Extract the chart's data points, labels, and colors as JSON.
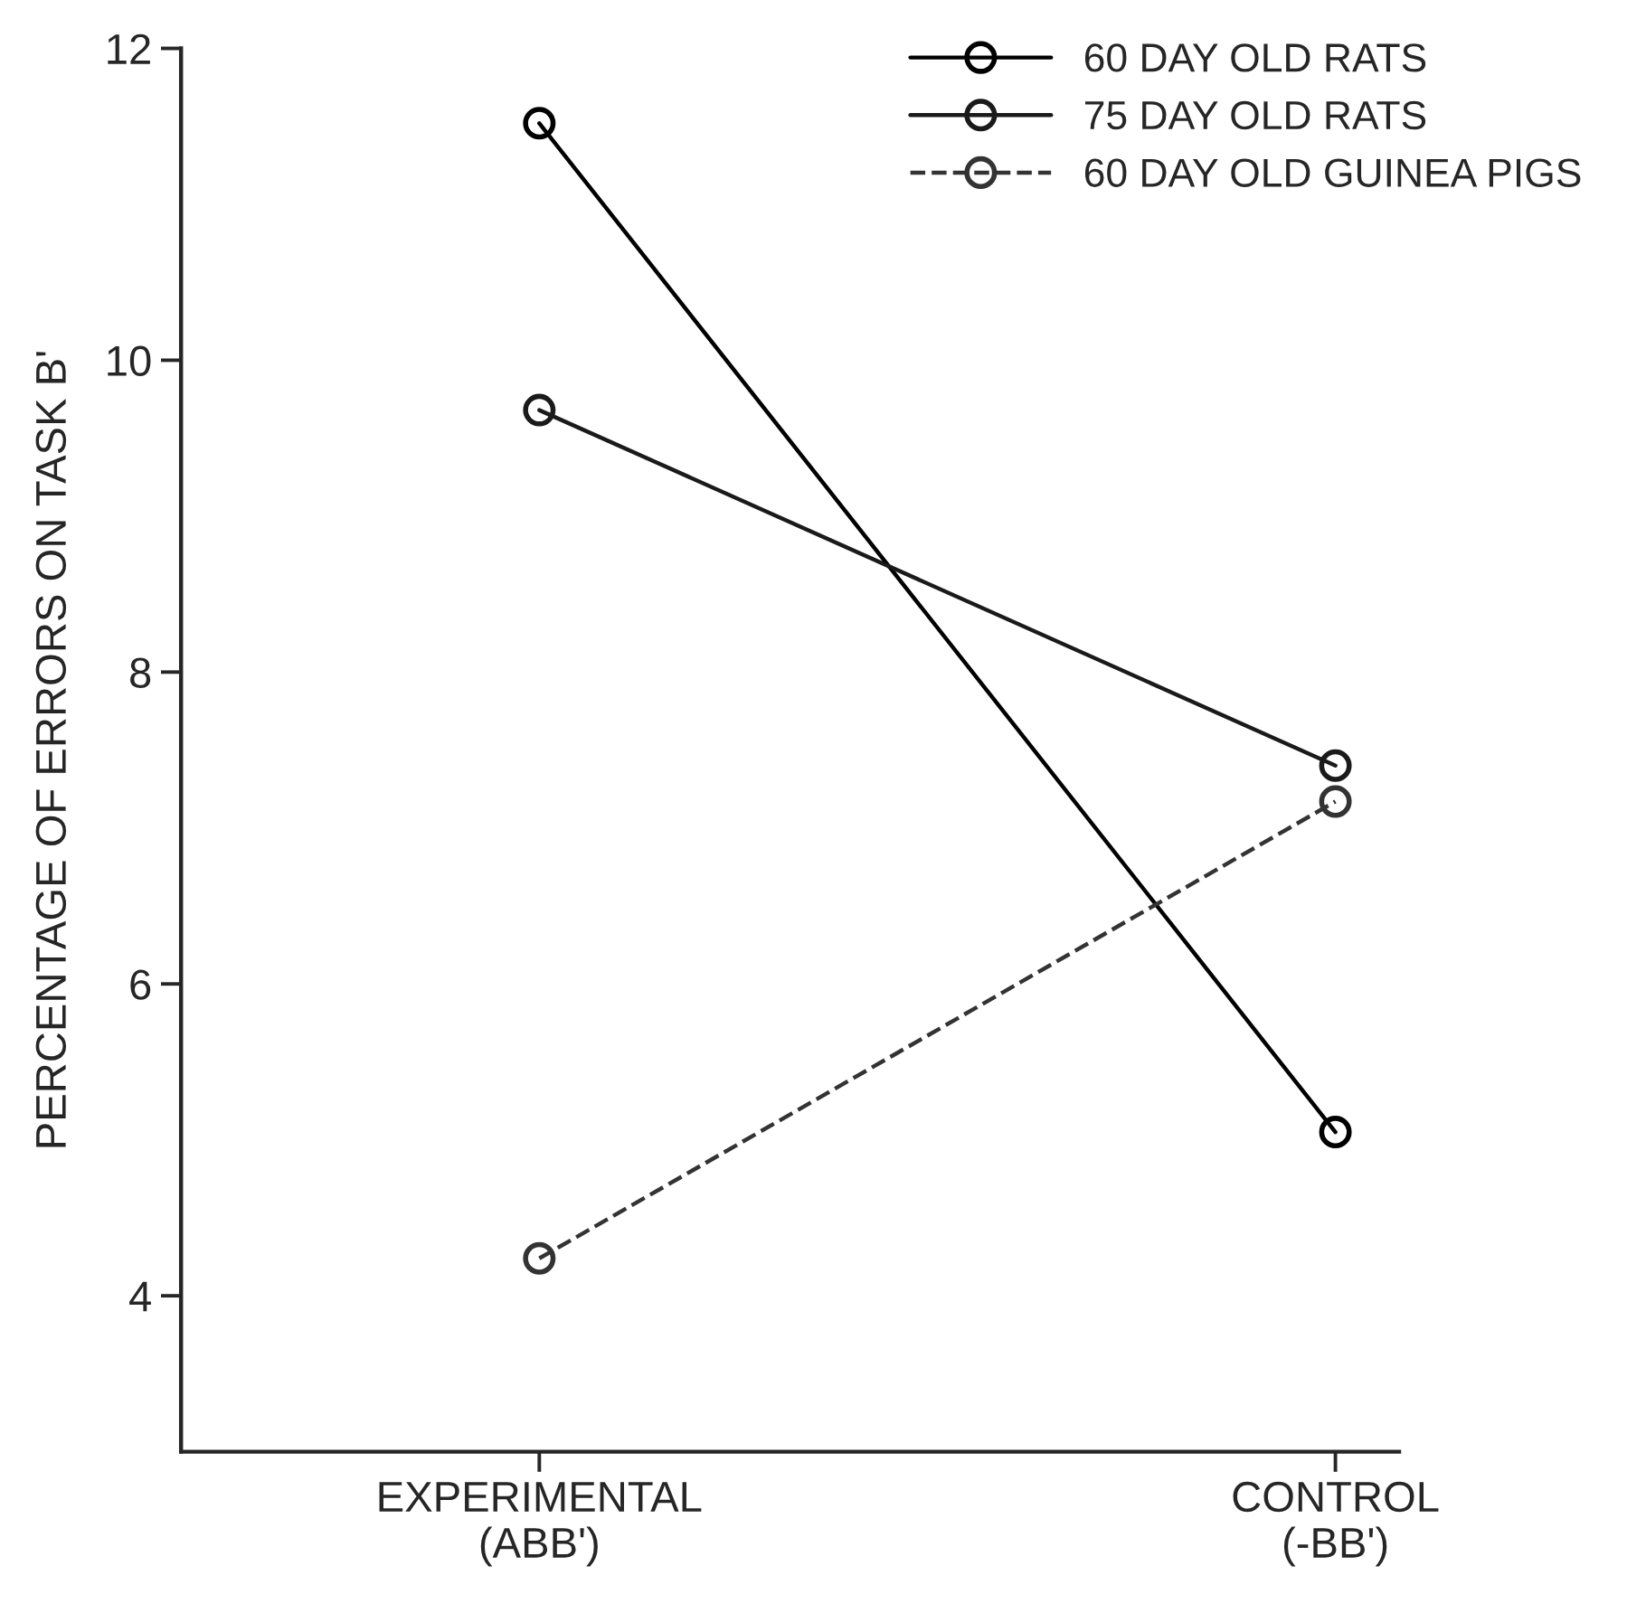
{
  "chart_data": {
    "type": "line",
    "categories": [
      "EXPERIMENTAL\n(ABB')",
      "CONTROL\n(-BB')"
    ],
    "ylabel": "PERCENTAGE OF ERRORS ON TASK B'",
    "ylim": [
      3,
      12
    ],
    "yticks": [
      4,
      6,
      8,
      10,
      12
    ],
    "grid": false,
    "legend": "top right",
    "marker": "circle",
    "series": [
      {
        "name": "60 DAY OLD RATS",
        "color": "#000000",
        "values": [
          11.52,
          5.05
        ],
        "line_style": "solid"
      },
      {
        "name": "75 DAY OLD RATS",
        "color": "#1a1a1a",
        "values": [
          9.68,
          7.4
        ],
        "line_style": "solid"
      },
      {
        "name": "60 DAY OLD GUINEA PIGS",
        "color": "#333333",
        "values": [
          4.24,
          7.17
        ],
        "line_style": "dashed"
      }
    ]
  }
}
